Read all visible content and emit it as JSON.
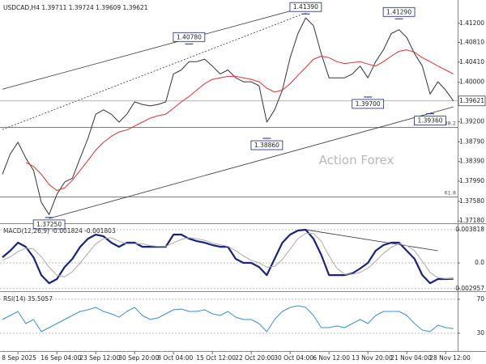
{
  "chart_data": [
    {
      "type": "line",
      "title": "USDCAD,H4  1.39711 1.39724 1.39609 1.39621",
      "categories": [
        null,
        null,
        "8 Sep 2025",
        null,
        null,
        null,
        null,
        "16 Sep 04:00",
        null,
        null,
        null,
        null,
        "23 Sep 12:00",
        null,
        null,
        null,
        null,
        "30 Sep 20:00",
        null,
        null,
        null,
        null,
        "8 Oct 04:00",
        null,
        null,
        null,
        null,
        "15 Oct 12:00",
        null,
        null,
        null,
        null,
        "22 Oct 20:00",
        null,
        null,
        null,
        null,
        "30 Oct 04:00",
        null,
        null,
        null,
        null,
        "6 Nov 12:00",
        null,
        null,
        null,
        null,
        "13 Nov 20:00",
        null,
        null,
        null,
        null,
        "21 Nov 04:00",
        null,
        null,
        null,
        null,
        "28 Nov 12:00",
        null
      ],
      "series": [
        {
          "color": "#333333",
          "values": [
            1.3813,
            1.3854,
            1.3878,
            1.3846,
            1.3821,
            1.3756,
            1.3731,
            1.3772,
            1.3797,
            1.3805,
            1.3846,
            1.3886,
            1.3935,
            1.3944,
            1.3935,
            1.3919,
            1.3935,
            1.396,
            1.3955,
            1.3952,
            1.3955,
            1.396,
            1.4017,
            1.4025,
            1.4042,
            1.4042,
            1.4047,
            1.4033,
            1.4017,
            1.4025,
            1.4009,
            1.4001,
            1.4001,
            1.3993,
            1.3919,
            1.3944,
            1.3984,
            1.405,
            1.4099,
            1.4131,
            1.4115,
            1.4058,
            1.4009,
            1.4009,
            1.4009,
            1.4017,
            1.4033,
            1.4009,
            1.4042,
            1.4066,
            1.4099,
            1.4107,
            1.4091,
            1.4058,
            1.4033,
            1.3976,
            1.4001,
            1.3984,
            1.39621
          ]
        },
        {
          "color": "#e03030",
          "values": [
            null,
            null,
            null,
            1.3837,
            1.3829,
            1.3813,
            1.3792,
            1.378,
            1.3785,
            1.3801,
            1.3821,
            1.3841,
            1.3862,
            1.3878,
            1.389,
            1.3899,
            1.3903,
            1.3911,
            1.3919,
            1.3927,
            1.3932,
            1.3935,
            1.3947,
            1.396,
            1.3971,
            1.3984,
            1.3997,
            1.4006,
            1.4009,
            1.4012,
            1.4012,
            1.4009,
            1.4006,
            1.4001,
            1.3988,
            1.398,
            1.3984,
            1.3997,
            1.4014,
            1.403,
            1.4047,
            1.4053,
            1.405,
            1.4042,
            1.4038,
            1.404,
            1.4042,
            1.4037,
            1.4033,
            1.4042,
            1.4053,
            1.4063,
            1.4066,
            1.4061,
            1.405,
            1.4042,
            1.4033,
            1.4025,
            1.4017
          ]
        }
      ],
      "ylim": [
        1.3715,
        1.4164
      ],
      "yticks": [
        {
          "value": 1.412,
          "label": "1.41200"
        },
        {
          "value": 1.4081,
          "label": "1.40810"
        },
        {
          "value": 1.4041,
          "label": "1.40410"
        },
        {
          "value": 1.4,
          "label": "1.40000"
        },
        {
          "value": 1.392,
          "label": "1.39200"
        },
        {
          "value": 1.3879,
          "label": "1.38790"
        },
        {
          "value": 1.3839,
          "label": "1.38390"
        },
        {
          "value": 1.3799,
          "label": "1.37990"
        },
        {
          "value": 1.3758,
          "label": "1.37580"
        },
        {
          "value": 1.3718,
          "label": "1.37180"
        }
      ],
      "last_price": {
        "value": 1.39621,
        "label": "1.39621"
      },
      "annotations": [
        {
          "label": "1.41390",
          "value": 1.4139,
          "x": 39
        },
        {
          "label": "1.40780",
          "value": 1.4078,
          "x": 24
        },
        {
          "label": "1.41290",
          "value": 1.4129,
          "x": 51
        },
        {
          "label": "1.39700",
          "value": 1.397,
          "x": 47
        },
        {
          "label": "1.39360",
          "value": 1.3936,
          "x": 55
        },
        {
          "label": "1.38860",
          "value": 1.3886,
          "x": 34
        },
        {
          "label": "1.37250",
          "value": 1.3725,
          "x": 6
        }
      ],
      "levels": [
        {
          "label": "38.2",
          "value": 1.3908
        },
        {
          "label": "61.8",
          "value": 1.3767
        }
      ],
      "trendlines": [
        {
          "x": [
            0,
            41
          ],
          "values": [
            1.3986,
            1.4162
          ],
          "dashed": false
        },
        {
          "x": [
            0,
            39
          ],
          "values": [
            1.3904,
            1.4141
          ],
          "dashed": true
        },
        {
          "x": [
            6,
            58
          ],
          "values": [
            1.3723,
            1.395
          ],
          "dashed": false
        }
      ],
      "watermark": "Action Forex"
    },
    {
      "type": "line",
      "title": "MACD(12,26,9) -0.001824 -0.001803",
      "series": [
        {
          "color": "#1a237e",
          "width": 2.2,
          "values": [
            0.00065,
            0.0014,
            0.00233,
            0.00186,
            0.00065,
            -0.0014,
            -0.00233,
            -0.00186,
            -0.00047,
            0.00047,
            0.00186,
            0.00279,
            0.00326,
            0.00307,
            0.00233,
            0.00186,
            0.00233,
            0.00233,
            0.00186,
            0.00186,
            0.00186,
            0.00186,
            0.00326,
            0.00326,
            0.00279,
            0.00251,
            0.00233,
            0.00205,
            0.00186,
            0.00186,
            0.00047,
            0,
            0,
            -0.00047,
            -0.0014,
            0.00047,
            0.00233,
            0.00326,
            0.00373,
            0.00382,
            0.00279,
            0.00093,
            -0.0014,
            -0.0014,
            -0.0014,
            -0.00121,
            -0.00065,
            0,
            0.0014,
            0.00205,
            0.00233,
            0.00233,
            0.0014,
            0.00047,
            -0.0014,
            -0.00233,
            -0.00186,
            -0.00186,
            -0.001824
          ]
        },
        {
          "color": "#aaaaaa",
          "width": 1,
          "values": [
            0.0003,
            0.0007,
            0.0013,
            0.0017,
            0.0016,
            0.0007,
            -0.0005,
            -0.0014,
            -0.0016,
            -0.001,
            0,
            0.0011,
            0.0022,
            0.0028,
            0.0029,
            0.0025,
            0.0022,
            0.0022,
            0.0022,
            0.002,
            0.0019,
            0.0019,
            0.0023,
            0.0027,
            0.0029,
            0.0028,
            0.0026,
            0.0023,
            0.0021,
            0.0019,
            0.0014,
            0.0008,
            0.0003,
            0,
            -0.0005,
            -0.0004,
            0.0004,
            0.0016,
            0.0028,
            0.0034,
            0.0034,
            0.0025,
            0.0008,
            -0.0006,
            -0.0013,
            -0.0013,
            -0.0011,
            -0.0006,
            0.0002,
            0.0011,
            0.0018,
            0.0022,
            0.002,
            0.0014,
            0.0002,
            -0.0011,
            -0.0017,
            -0.0018,
            -0.001803
          ]
        }
      ],
      "ylim": [
        -0.00307,
        0.00438
      ],
      "yticks": [
        0.003818,
        {
          "value": 0,
          "label": "0.0"
        },
        -0.002957
      ],
      "grid": true,
      "trendlines": [
        {
          "x": [
            39,
            56
          ],
          "values": [
            0.00382,
            0.0014
          ],
          "dashed": false
        }
      ]
    },
    {
      "type": "line",
      "title": "RSI(14) 35.5057",
      "series": [
        {
          "color": "#3a8fd8",
          "width": 1,
          "values": [
            46.2,
            51,
            55.7,
            41.4,
            46.2,
            31.9,
            36.7,
            41.4,
            46.2,
            51,
            55.7,
            57.6,
            60.5,
            55.7,
            52.9,
            49,
            55.7,
            60.5,
            51,
            46.2,
            48.1,
            52.9,
            57.6,
            58.6,
            55.7,
            55.7,
            57.6,
            52.9,
            51,
            55.7,
            49,
            46.2,
            46.2,
            41.4,
            31.9,
            46.2,
            55.7,
            60.5,
            62.4,
            60.5,
            51,
            36.7,
            36.7,
            38.6,
            36.7,
            41.4,
            46.2,
            41.4,
            51,
            55.7,
            55.7,
            55.7,
            51,
            41.4,
            33.8,
            31.9,
            39.5,
            36.7,
            35.5057
          ]
        }
      ],
      "ylim": [
        11,
        77.6
      ],
      "yticks": [
        70,
        30
      ],
      "grid": true
    }
  ]
}
